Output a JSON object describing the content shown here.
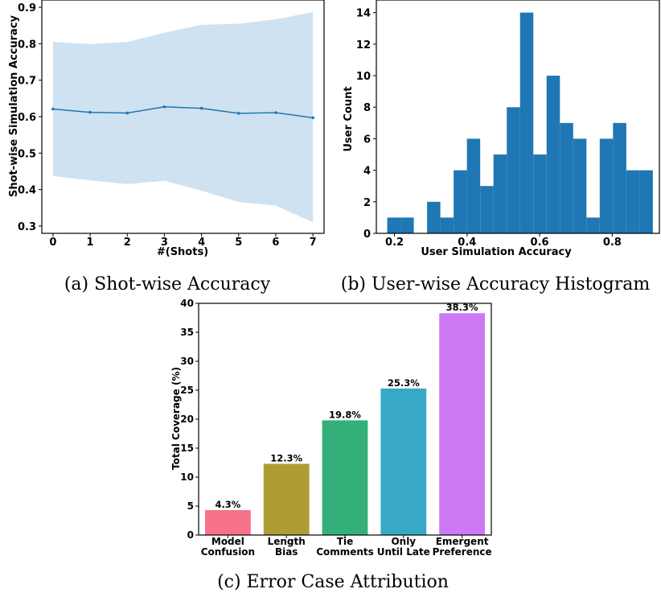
{
  "chart_data": [
    {
      "type": "line",
      "xlabel": "#(Shots)",
      "ylabel": "Shot-wise Simulation Accuracy",
      "caption": "(a) Shot-wise Accuracy",
      "x": [
        0,
        1,
        2,
        3,
        4,
        5,
        6,
        7
      ],
      "y": [
        0.621,
        0.612,
        0.61,
        0.627,
        0.623,
        0.609,
        0.611,
        0.597
      ],
      "band_upper": [
        0.805,
        0.799,
        0.805,
        0.83,
        0.852,
        0.855,
        0.867,
        0.887
      ],
      "band_lower": [
        0.437,
        0.425,
        0.415,
        0.424,
        0.397,
        0.366,
        0.356,
        0.31
      ],
      "xlim": [
        -0.3,
        7.3
      ],
      "ylim": [
        0.28,
        0.92
      ],
      "xticks": [
        0,
        1,
        2,
        3,
        4,
        5,
        6,
        7
      ],
      "yticks": [
        0.3,
        0.4,
        0.5,
        0.6,
        0.7,
        0.8,
        0.9
      ],
      "line_color": "#1f77b4",
      "band_color": "#cfe2f1"
    },
    {
      "type": "bar",
      "subtype": "histogram",
      "xlabel": "User Simulation Accuracy",
      "ylabel": "User Count",
      "caption": "(b) User-wise Accuracy Histogram",
      "bin_start": 0.18,
      "bin_width": 0.0366,
      "counts": [
        1,
        1,
        0,
        2,
        1,
        4,
        6,
        3,
        5,
        8,
        14,
        5,
        10,
        7,
        6,
        1,
        6,
        7,
        4,
        4
      ],
      "xlim": [
        0.15,
        0.93
      ],
      "ylim": [
        0,
        14.8
      ],
      "xticks": [
        0.2,
        0.4,
        0.6,
        0.8
      ],
      "yticks": [
        0,
        2,
        4,
        6,
        8,
        10,
        12,
        14
      ],
      "color": "#1f77b4"
    },
    {
      "type": "bar",
      "xlabel": "",
      "ylabel": "Total Coverage (%)",
      "caption": "(c) Error Case Attribution",
      "categories": [
        [
          "Model",
          "Confusion"
        ],
        [
          "Length",
          "Bias"
        ],
        [
          "Tie",
          "Comments"
        ],
        [
          "Only",
          "Until Late"
        ],
        [
          "Emergent",
          "Preference"
        ]
      ],
      "values": [
        4.3,
        12.3,
        19.8,
        25.3,
        38.3
      ],
      "labels": [
        "4.3%",
        "12.3%",
        "19.8%",
        "25.3%",
        "38.3%"
      ],
      "colors": [
        "#f77189",
        "#ae9d31",
        "#33b07a",
        "#38a9c5",
        "#cc7af4"
      ],
      "ylim": [
        0,
        40
      ],
      "yticks": [
        0,
        5,
        10,
        15,
        20,
        25,
        30,
        35,
        40
      ]
    }
  ]
}
